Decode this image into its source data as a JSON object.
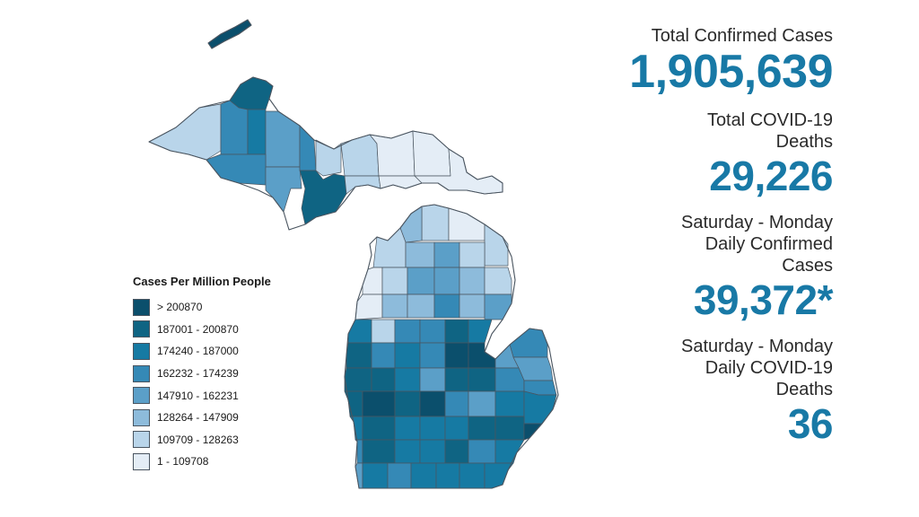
{
  "stats": {
    "total_cases_label": "Total Confirmed Cases",
    "total_cases_value": "1,905,639",
    "total_deaths_label_line1": "Total COVID-19",
    "total_deaths_label_line2": "Deaths",
    "total_deaths_value": "29,226",
    "daily_cases_label_line1": "Saturday - Monday",
    "daily_cases_label_line2": "Daily Confirmed",
    "daily_cases_label_line3": "Cases",
    "daily_cases_value": "39,372*",
    "daily_deaths_label_line1": "Saturday - Monday",
    "daily_deaths_label_line2": "Daily COVID-19",
    "daily_deaths_label_line3": "Deaths",
    "daily_deaths_value": "36"
  },
  "legend": {
    "title": "Cases Per Million People",
    "bins": [
      {
        "label": "> 200870",
        "color": "#0b4f6c"
      },
      {
        "label": "187001 - 200870",
        "color": "#0f6483"
      },
      {
        "label": "174240 - 187000",
        "color": "#167aa3"
      },
      {
        "label": "162232 - 174239",
        "color": "#3589b6"
      },
      {
        "label": "147910 - 162231",
        "color": "#5b9fc8"
      },
      {
        "label": "128264 - 147909",
        "color": "#8dbbdb"
      },
      {
        "label": "109709 - 128263",
        "color": "#b9d5ea"
      },
      {
        "label": "1 - 109708",
        "color": "#e4edf6"
      }
    ]
  },
  "map": {
    "colors": {
      "outline": "#4a5560"
    }
  }
}
